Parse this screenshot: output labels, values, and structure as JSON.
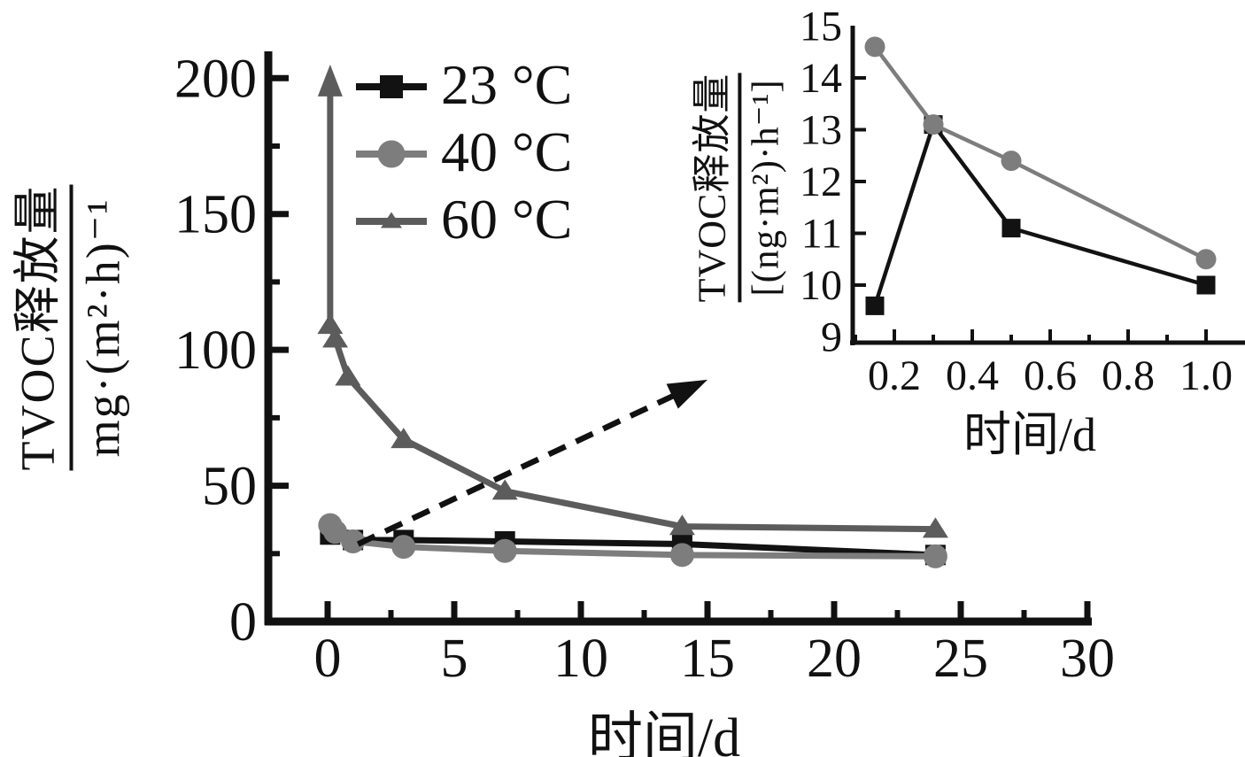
{
  "figure": {
    "background": "#ffffff",
    "text_color": "#111111"
  },
  "legend": {
    "items": [
      {
        "label": "23 °C",
        "marker": "square",
        "color": "#121212"
      },
      {
        "label": "40 °C",
        "marker": "circle",
        "color": "#7d7d7d"
      },
      {
        "label": "60 °C",
        "marker": "triangle",
        "color": "#5c5c5c"
      }
    ]
  },
  "chart_data": [
    {
      "id": "main",
      "type": "line",
      "xlabel": "时间/d",
      "ylabel_numerator": "TVOC释放量",
      "ylabel_denominator": "mg·(m²·h)⁻¹",
      "xlim": [
        -2.5,
        30.2
      ],
      "ylim": [
        0,
        210
      ],
      "grid": false,
      "legend_position": "upper-left-inside",
      "x_ticks": [
        0,
        5,
        10,
        15,
        20,
        25,
        30
      ],
      "x_tick_labels": [
        "0",
        "5",
        "10",
        "15",
        "20",
        "25",
        "30"
      ],
      "x_minor_ticks": [
        2.5,
        7.5,
        12.5,
        17.5,
        22.5,
        27.5
      ],
      "y_ticks": [
        0,
        50,
        100,
        150,
        200
      ],
      "y_tick_labels": [
        "0",
        "50",
        "100",
        "150",
        "200"
      ],
      "y_tick_marks": [
        50,
        100,
        150,
        200
      ],
      "y_minor_ticks": [
        25,
        75,
        125,
        175
      ],
      "series": [
        {
          "name": "23 °C",
          "marker": "square",
          "color": "#121212",
          "points": [
            [
              0.1,
              32
            ],
            [
              1,
              30
            ],
            [
              3,
              30
            ],
            [
              7,
              29.5
            ],
            [
              14,
              28.5
            ],
            [
              24,
              24.5
            ]
          ]
        },
        {
          "name": "40 °C",
          "marker": "circle",
          "color": "#7d7d7d",
          "points": [
            [
              0.1,
              35.5
            ],
            [
              0.3,
              33
            ],
            [
              1,
              29.5
            ],
            [
              3,
              27.5
            ],
            [
              7,
              26
            ],
            [
              14,
              24.5
            ],
            [
              24,
              24
            ]
          ]
        },
        {
          "name": "60 °C",
          "marker": "triangle",
          "color": "#5c5c5c",
          "points": [
            [
              0.1,
              109
            ],
            [
              0.3,
              104
            ],
            [
              0.8,
              90
            ],
            [
              3,
              67
            ],
            [
              7,
              48
            ],
            [
              14,
              35
            ],
            [
              24,
              34
            ]
          ],
          "offscale_arrow": {
            "x": 0.1,
            "from": 108,
            "to": 205
          }
        }
      ],
      "annotation_arrow": {
        "from": [
          1.2,
          28.5
        ],
        "to": [
          15,
          89
        ],
        "style": "dashed",
        "color": "#111111"
      }
    },
    {
      "id": "inset",
      "type": "line",
      "xlabel": "时间/d",
      "ylabel_numerator": "TVOC释放量",
      "ylabel_denominator": "[(ng·m²)·h⁻¹]",
      "xlim": [
        0.09,
        1.1
      ],
      "ylim": [
        8.9,
        15.1
      ],
      "grid": false,
      "x_ticks": [
        0.2,
        0.4,
        0.6,
        0.8,
        1.0
      ],
      "x_tick_labels": [
        "0.2",
        "0.4",
        "0.6",
        "0.8",
        "1.0"
      ],
      "x_minor_ticks": [
        0.1,
        0.3,
        0.5,
        0.7,
        0.9
      ],
      "y_ticks": [
        9,
        10,
        11,
        12,
        13,
        14,
        15
      ],
      "y_tick_labels": [
        "9",
        "10",
        "11",
        "12",
        "13",
        "14",
        "15"
      ],
      "y_tick_marks": [
        10,
        11,
        12,
        13,
        14
      ],
      "y_minor_ticks": [],
      "series": [
        {
          "name": "23 °C",
          "marker": "square",
          "color": "#121212",
          "points": [
            [
              0.15,
              9.6
            ],
            [
              0.3,
              13.1
            ],
            [
              0.5,
              11.1
            ],
            [
              1.0,
              10.0
            ]
          ]
        },
        {
          "name": "40 °C",
          "marker": "circle",
          "color": "#7d7d7d",
          "points": [
            [
              0.15,
              14.6
            ],
            [
              0.3,
              13.1
            ],
            [
              0.5,
              12.4
            ],
            [
              1.0,
              10.5
            ]
          ]
        }
      ]
    }
  ]
}
